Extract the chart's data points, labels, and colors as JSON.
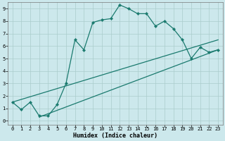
{
  "xlabel": "Humidex (Indice chaleur)",
  "bg_color": "#cce8ec",
  "grid_color": "#aacccc",
  "line_color": "#1a7a6e",
  "xlim": [
    -0.5,
    23.5
  ],
  "ylim": [
    -0.3,
    9.5
  ],
  "xticks": [
    0,
    1,
    2,
    3,
    4,
    5,
    6,
    7,
    8,
    9,
    10,
    11,
    12,
    13,
    14,
    15,
    16,
    17,
    18,
    19,
    20,
    21,
    22,
    23
  ],
  "yticks": [
    0,
    1,
    2,
    3,
    4,
    5,
    6,
    7,
    8,
    9
  ],
  "curve1_x": [
    0,
    1,
    2,
    3,
    4,
    5,
    6,
    7,
    8,
    9,
    10,
    11,
    12,
    13,
    14,
    15,
    16,
    17,
    18,
    19,
    20,
    21,
    22,
    23
  ],
  "curve1_y": [
    1.5,
    0.9,
    1.5,
    0.4,
    0.4,
    1.3,
    3.0,
    6.5,
    5.7,
    7.9,
    8.1,
    8.2,
    9.3,
    9.0,
    8.6,
    8.6,
    7.6,
    8.0,
    7.4,
    6.5,
    5.0,
    5.9,
    5.5,
    5.7
  ],
  "line2_x": [
    0,
    23
  ],
  "line2_y": [
    1.5,
    6.5
  ],
  "line3_x": [
    3,
    23
  ],
  "line3_y": [
    0.3,
    5.7
  ],
  "marker": "D",
  "marker_size": 2.2,
  "tick_fontsize": 5.0,
  "xlabel_fontsize": 6.0
}
